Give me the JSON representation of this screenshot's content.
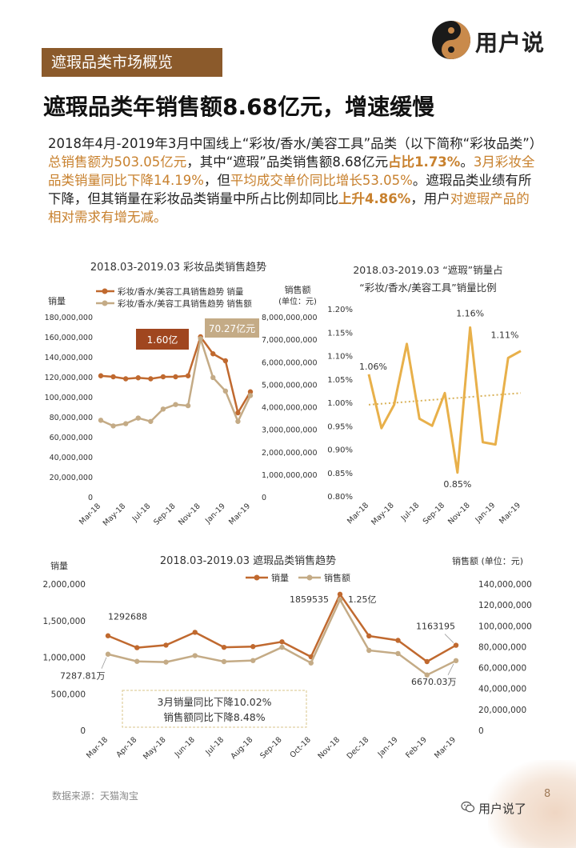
{
  "brand": {
    "name": "用户说"
  },
  "section_tag": "遮瑕品类市场概览",
  "headline": "遮瑕品类年销售额8.68亿元，增速缓慢",
  "paragraph": {
    "p1": "2018年4月-2019年3月中国线上“彩妆/香水/美容工具”品类（以下简称“彩妆品类”）",
    "p2": "总销售额为503.05亿元",
    "p3": "，其中“遮瑕”品类销售额8.68亿元",
    "p4": "占比1.73%",
    "p5": "。",
    "p6": "3月彩妆全品类销量同比下降14.19%",
    "p7": "，但",
    "p8": "平均成交单价同比增长53.05%",
    "p9": "。遮瑕品类业绩有所下降，但其销量在彩妆品类销量中所占比例却同比",
    "p10": "上升4.86%",
    "p11": "，用户",
    "p12": "对遮瑕产品的相对需求有增无减。"
  },
  "colors": {
    "orange": "#c0692f",
    "tan": "#c4ab86",
    "gold": "#e8b04a",
    "brown": "#8b5a2b",
    "dotted": "#d9b25a"
  },
  "source": "数据来源：天猫淘宝",
  "footer_brand": "用户说了",
  "page_number": "8",
  "chart_data": [
    {
      "type": "line",
      "title": "2018.03-2019.03  彩妆品类销售趋势",
      "ylabel_left": "销量",
      "ylabel_right": "销售额",
      "ylabel_right_unit": "(单位：元)",
      "x": [
        "Mar-18",
        "Apr-18",
        "May-18",
        "Jun-18",
        "Jul-18",
        "Aug-18",
        "Sep-18",
        "Oct-18",
        "Nov-18",
        "Dec-18",
        "Jan-19",
        "Feb-19",
        "Mar-19"
      ],
      "x_tick_labels": [
        "Mar-18",
        "May-18",
        "Jul-18",
        "Sep-18",
        "Nov-18",
        "Jan-19",
        "Mar-19"
      ],
      "left_ticks": [
        "0",
        "20,000,000",
        "40,000,000",
        "60,000,000",
        "80,000,000",
        "100,000,000",
        "120,000,000",
        "140,000,000",
        "160,000,000",
        "180,000,000"
      ],
      "right_ticks": [
        "0",
        "1,000,000,000",
        "2,000,000,000",
        "3,000,000,000",
        "4,000,000,000",
        "5,000,000,000",
        "6,000,000,000",
        "7,000,000,000",
        "8,000,000,000"
      ],
      "ylim_left": [
        0,
        180000000
      ],
      "ylim_right": [
        0,
        8000000000
      ],
      "series": [
        {
          "name": "彩妆/香水/美容工具销售趋势 销量",
          "axis": "left",
          "color": "#c0692f",
          "values": [
            121000000,
            120000000,
            118000000,
            119000000,
            118000000,
            120000000,
            120000000,
            121000000,
            160000000,
            143000000,
            136000000,
            84000000,
            105000000
          ]
        },
        {
          "name": "彩妆/香水/美容工具销售趋势 销售额",
          "axis": "right",
          "color": "#c4ab86",
          "values": [
            3400000000,
            3150000000,
            3250000000,
            3500000000,
            3350000000,
            3900000000,
            4100000000,
            4050000000,
            7027000000,
            5300000000,
            4700000000,
            3350000000,
            4500000000
          ]
        }
      ],
      "annotations": [
        {
          "text": "1.60亿"
        },
        {
          "text": "70.27亿元"
        }
      ]
    },
    {
      "type": "line",
      "title_line1": "2018.03-2019.03 “遮瑕”销量占",
      "title_line2": "“彩妆/香水/美容工具”销量比例",
      "x": [
        "Mar-18",
        "Apr-18",
        "May-18",
        "Jun-18",
        "Jul-18",
        "Aug-18",
        "Sep-18",
        "Oct-18",
        "Nov-18",
        "Dec-18",
        "Jan-19",
        "Feb-19",
        "Mar-19"
      ],
      "x_tick_labels": [
        "Mar-18",
        "May-18",
        "Jul-18",
        "Sep-18",
        "Nov-18",
        "Jan-19",
        "Mar-19"
      ],
      "y_ticks": [
        "0.80%",
        "0.85%",
        "0.90%",
        "0.95%",
        "1.00%",
        "1.05%",
        "1.10%",
        "1.15%",
        "1.20%"
      ],
      "ylim": [
        0.8,
        1.2
      ],
      "series": [
        {
          "name": "",
          "color": "#e8b04a",
          "values": [
            1.06,
            0.945,
            0.995,
            1.125,
            0.965,
            0.95,
            1.02,
            0.85,
            1.16,
            0.915,
            0.91,
            1.095,
            1.11
          ]
        }
      ],
      "trendline": [
        0.995,
        1.02
      ],
      "annotations": [
        {
          "text": "1.06%"
        },
        {
          "text": "1.16%"
        },
        {
          "text": "0.85%"
        },
        {
          "text": "1.11%"
        }
      ]
    },
    {
      "type": "line",
      "title": "2018.03-2019.03  遮瑕品类销售趋势",
      "ylabel_left": "销量",
      "ylabel_right": "销售额 (单位：元)",
      "x": [
        "Mar-18",
        "Apr-18",
        "May-18",
        "Jun-18",
        "Jul-18",
        "Aug-18",
        "Sep-18",
        "Oct-18",
        "Nov-18",
        "Dec-18",
        "Jan-19",
        "Feb-19",
        "Mar-19"
      ],
      "left_ticks": [
        "0",
        "500,000",
        "1,000,000",
        "1,500,000",
        "2,000,000"
      ],
      "right_ticks": [
        "0",
        "20,000,000",
        "40,000,000",
        "60,000,000",
        "80,000,000",
        "100,000,000",
        "120,000,000",
        "140,000,000"
      ],
      "ylim_left": [
        0,
        2000000
      ],
      "ylim_right": [
        0,
        140000000
      ],
      "series": [
        {
          "name": "销量",
          "axis": "left",
          "color": "#c0692f",
          "values": [
            1292688,
            1130000,
            1165000,
            1340000,
            1135000,
            1145000,
            1210000,
            1005000,
            1859535,
            1290000,
            1230000,
            940000,
            1163195
          ]
        },
        {
          "name": "销售额",
          "axis": "right",
          "color": "#c4ab86",
          "values": [
            72878100,
            66000000,
            65300000,
            71500000,
            65800000,
            66800000,
            79500000,
            64500000,
            125000000,
            76500000,
            73500000,
            53000000,
            66700300
          ]
        }
      ],
      "annotations": [
        {
          "text": "1292688"
        },
        {
          "text": "7287.81万"
        },
        {
          "text": "1859535"
        },
        {
          "text": "1.25亿"
        },
        {
          "text": "1163195"
        },
        {
          "text": "6670.03万"
        }
      ],
      "callout": {
        "line1": "3月销量同比下降10.02%",
        "line2": "销售额同比下降8.48%"
      }
    }
  ]
}
